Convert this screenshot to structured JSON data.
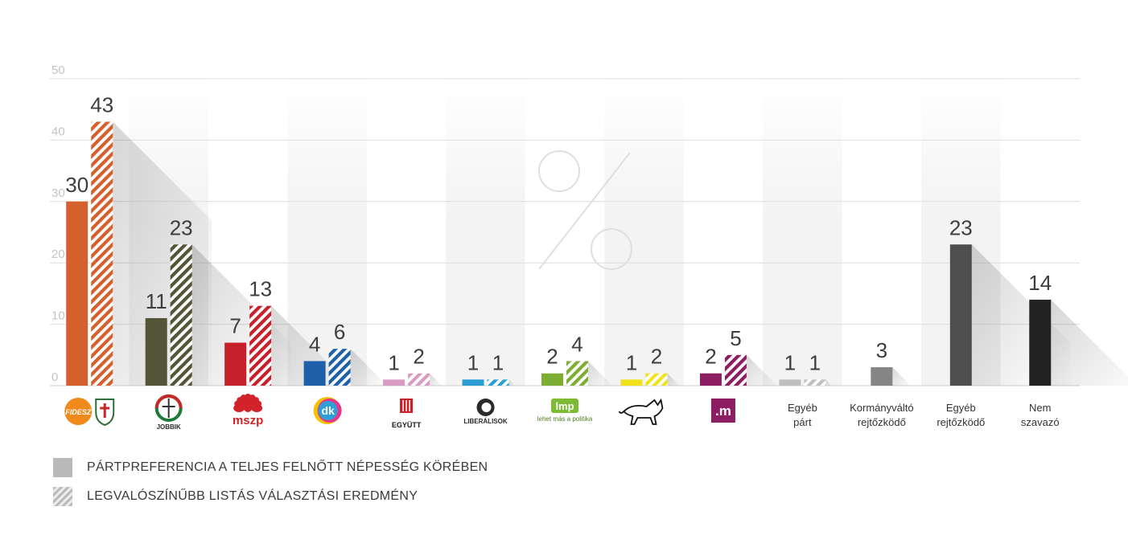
{
  "chart_data": {
    "type": "bar",
    "ylim": [
      0,
      50
    ],
    "yticks": [
      0,
      10,
      20,
      30,
      40,
      50
    ],
    "decoration_symbol": "%",
    "series": [
      {
        "name": "PÁRTPREFERENCIA A TELJES FELNŐTT NÉPESSÉG KÖRÉBEN",
        "pattern": "solid"
      },
      {
        "name": "LEGVALÓSZÍNŰBB LISTÁS VÁLASZTÁSI EREDMÉNY",
        "pattern": "striped"
      }
    ],
    "categories": [
      {
        "label": "FIDESZ",
        "logo": "fidesz-kdnp-logo",
        "color": "#d4602d",
        "values": [
          30,
          43
        ]
      },
      {
        "label": "JOBBIK",
        "logo": "jobbik-logo",
        "color": "#535536",
        "values": [
          11,
          23
        ]
      },
      {
        "label": "mszp",
        "logo": "mszp-logo",
        "color": "#c8202a",
        "values": [
          7,
          13
        ]
      },
      {
        "label": "dk",
        "logo": "dk-logo",
        "color": "#1d5fa8",
        "values": [
          4,
          6
        ]
      },
      {
        "label": "EGYÜTT",
        "logo": "egyutt-logo",
        "color": "#d89bc4",
        "values": [
          1,
          2
        ]
      },
      {
        "label": "LIBERÁLISOK",
        "logo": "liberalisok-logo",
        "color": "#2b9fd4",
        "values": [
          1,
          1
        ]
      },
      {
        "label": "lmp",
        "logo": "lmp-logo",
        "sublabel": "lehet más a politika",
        "color": "#7dae33",
        "values": [
          2,
          4
        ]
      },
      {
        "label": "MKKP",
        "logo": "mkkp-dog-logo",
        "color": "#f2e21a",
        "values": [
          1,
          2
        ]
      },
      {
        "label": ".m",
        "logo": "momentum-logo",
        "color": "#8c1d62",
        "values": [
          2,
          5
        ]
      },
      {
        "label": "Egyéb párt",
        "logo": "",
        "color": "#bfbfbf",
        "values": [
          1,
          1
        ]
      },
      {
        "label": "Kormányváltó rejtőzködő",
        "logo": "",
        "color": "#858585",
        "values": [
          3
        ]
      },
      {
        "label": "Egyéb rejtőzködő",
        "logo": "",
        "color": "#4f4f4f",
        "values": [
          23
        ]
      },
      {
        "label": "Nem szavazó",
        "logo": "",
        "color": "#222222",
        "values": [
          14
        ]
      }
    ]
  }
}
